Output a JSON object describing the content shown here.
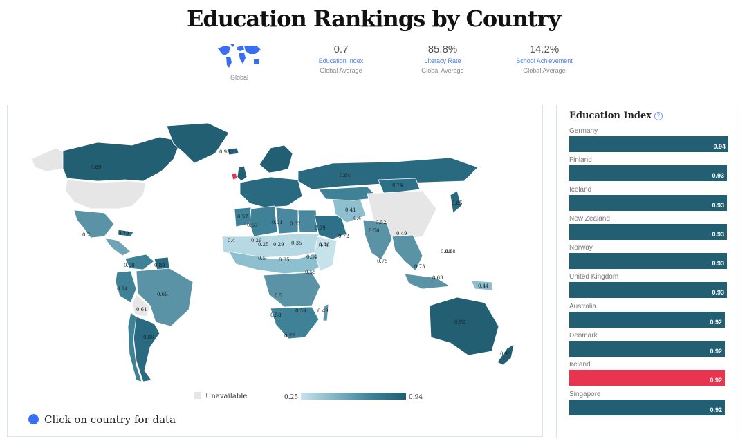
{
  "page": {
    "title": "Education Rankings by Country",
    "global_label": "Global"
  },
  "stats": [
    {
      "value": "0.7",
      "label": "Education Index",
      "sub": "Global Average"
    },
    {
      "value": "85.8%",
      "label": "Literacy Rate",
      "sub": "Global Average"
    },
    {
      "value": "14.2%",
      "label": "School Achievement",
      "sub": "Global Average"
    }
  ],
  "map": {
    "legend_unavailable": "Unavailable",
    "legend_min": "0.25",
    "legend_max": "0.94",
    "click_hint": "Click on country for data",
    "labels": [
      {
        "id": "canada",
        "text": "0.89"
      },
      {
        "id": "greenland",
        "text": "0.93"
      },
      {
        "id": "russia",
        "text": "0.84"
      },
      {
        "id": "mongolia",
        "text": "0.74"
      },
      {
        "id": "japan",
        "text": "0.85"
      },
      {
        "id": "mexico",
        "text": "0.7"
      },
      {
        "id": "cuba",
        "text": "0.79"
      },
      {
        "id": "brazil",
        "text": "0.69"
      },
      {
        "id": "argentina",
        "text": "0.86"
      },
      {
        "id": "australia",
        "text": "0.92"
      },
      {
        "id": "new-zealand",
        "text": "0.93"
      },
      {
        "id": "south-africa",
        "text": "0.72"
      },
      {
        "id": "india",
        "text": "0.56"
      },
      {
        "id": "saudi-arabia",
        "text": "0.79"
      },
      {
        "id": "algeria",
        "text": "0.67"
      },
      {
        "id": "libya",
        "text": "0.61"
      },
      {
        "id": "egypt",
        "text": "0.62"
      },
      {
        "id": "morocco",
        "text": "0.57"
      },
      {
        "id": "mali",
        "text": "0.25"
      },
      {
        "id": "niger",
        "text": "0.29"
      },
      {
        "id": "chad",
        "text": "0.35"
      },
      {
        "id": "nigeria",
        "text": "0.35"
      },
      {
        "id": "ethiopia",
        "text": "0.34"
      },
      {
        "id": "sudan",
        "text": "0.36"
      },
      {
        "id": "kenya",
        "text": "0.55"
      },
      {
        "id": "angola",
        "text": "0.5"
      },
      {
        "id": "zambia",
        "text": "0.59"
      },
      {
        "id": "madagascar",
        "text": "0.49"
      },
      {
        "id": "iran",
        "text": "0.41"
      },
      {
        "id": "afghanistan",
        "text": "0.4"
      },
      {
        "id": "pakistan",
        "text": "0.52"
      },
      {
        "id": "china",
        "text": "0.68"
      },
      {
        "id": "thailand",
        "text": "0.73"
      },
      {
        "id": "indonesia",
        "text": "0.63"
      },
      {
        "id": "png",
        "text": "0.44"
      },
      {
        "id": "sri-lanka",
        "text": "0.75"
      },
      {
        "id": "peru",
        "text": "0.74"
      },
      {
        "id": "venezuela",
        "text": "0.68"
      },
      {
        "id": "bolivia",
        "text": "0.61"
      },
      {
        "id": "guyana",
        "text": "0.88"
      },
      {
        "id": "oman",
        "text": "0.72"
      },
      {
        "id": "yemen",
        "text": "0.36"
      },
      {
        "id": "mauritania",
        "text": "0.29"
      },
      {
        "id": "senegal",
        "text": "0.4"
      },
      {
        "id": "burkina",
        "text": "0.5"
      },
      {
        "id": "namibia",
        "text": "0.58"
      },
      {
        "id": "philippines",
        "text": "0.68"
      },
      {
        "id": "myanmar",
        "text": "0.49"
      }
    ]
  },
  "ranking": {
    "title": "Education Index",
    "items": [
      {
        "country": "Germany",
        "value": 0.94,
        "label": "0.94",
        "color": "#225f73"
      },
      {
        "country": "Finland",
        "value": 0.93,
        "label": "0.93",
        "color": "#225f73"
      },
      {
        "country": "Iceland",
        "value": 0.93,
        "label": "0.93",
        "color": "#225f73"
      },
      {
        "country": "New Zealand",
        "value": 0.93,
        "label": "0.93",
        "color": "#225f73"
      },
      {
        "country": "Norway",
        "value": 0.93,
        "label": "0.93",
        "color": "#225f73"
      },
      {
        "country": "United Kingdom",
        "value": 0.93,
        "label": "0.93",
        "color": "#225f73"
      },
      {
        "country": "Australia",
        "value": 0.92,
        "label": "0.92",
        "color": "#225f73"
      },
      {
        "country": "Denmark",
        "value": 0.92,
        "label": "0.92",
        "color": "#225f73"
      },
      {
        "country": "Ireland",
        "value": 0.92,
        "label": "0.92",
        "color": "#e8344e"
      },
      {
        "country": "Singapore",
        "value": 0.92,
        "label": "0.92",
        "color": "#225f73"
      }
    ]
  },
  "colors": {
    "accent": "#4a7df0",
    "bar": "#225f73",
    "highlight": "#e8344e",
    "unavailable": "#e6e6e6"
  }
}
